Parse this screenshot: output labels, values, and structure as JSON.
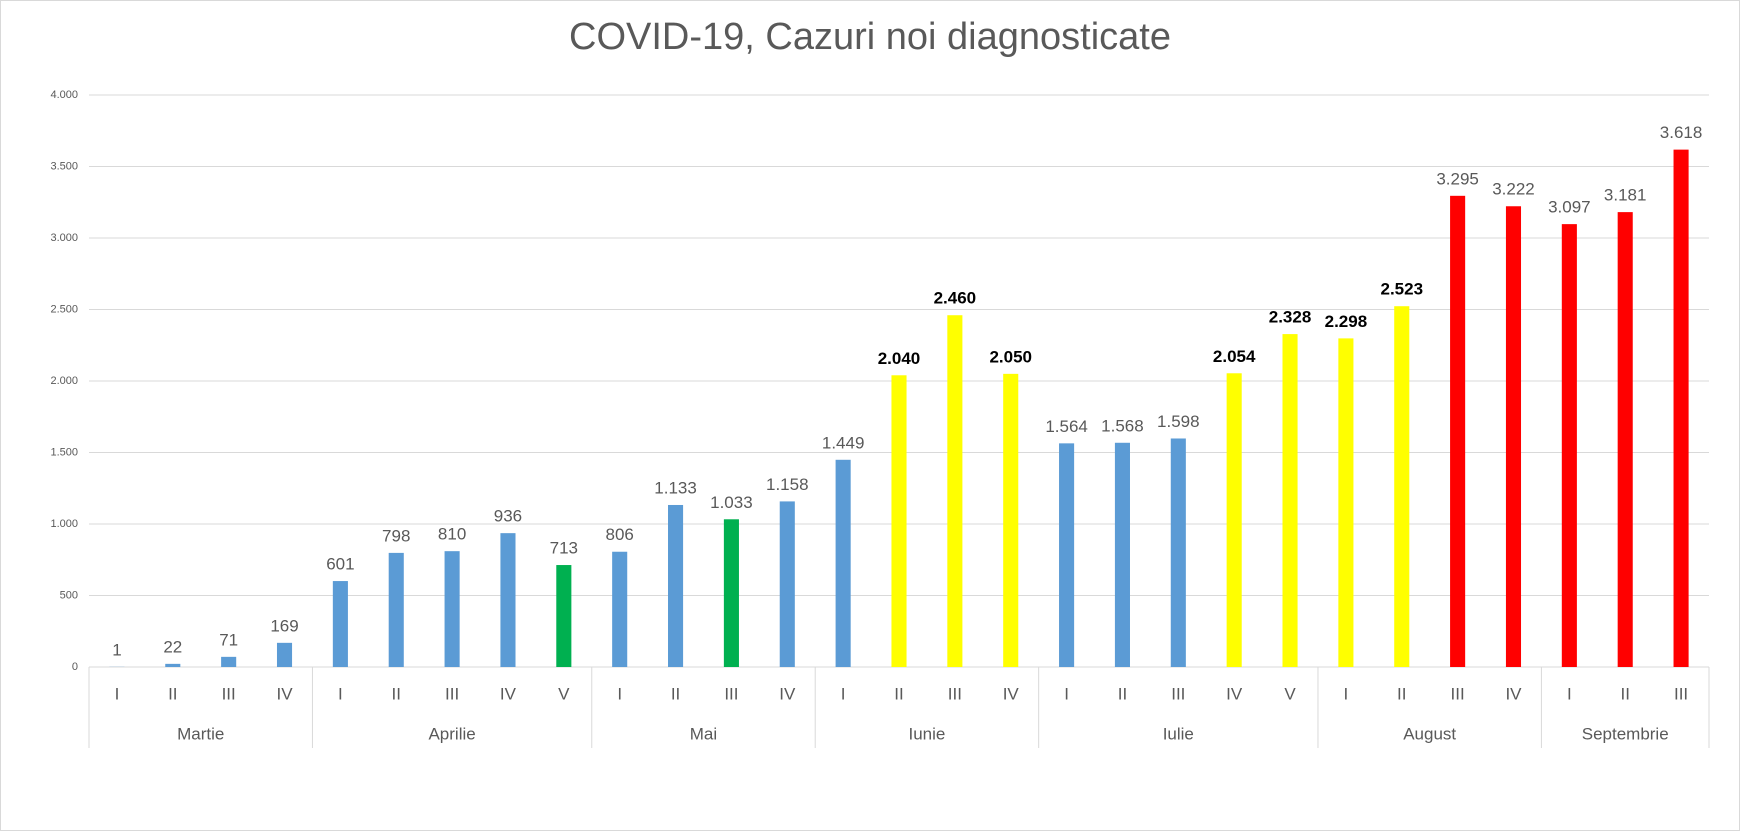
{
  "chart_data": {
    "type": "bar",
    "title": "COVID-19, Cazuri noi diagnosticate",
    "groups": [
      {
        "name": "Martie",
        "categories": [
          "I",
          "II",
          "III",
          "IV"
        ]
      },
      {
        "name": "Aprilie",
        "categories": [
          "I",
          "II",
          "III",
          "IV",
          "V"
        ]
      },
      {
        "name": "Mai",
        "categories": [
          "I",
          "II",
          "III",
          "IV"
        ]
      },
      {
        "name": "Iunie",
        "categories": [
          "I",
          "II",
          "III",
          "IV"
        ]
      },
      {
        "name": "Iulie",
        "categories": [
          "I",
          "II",
          "III",
          "IV",
          "V"
        ]
      },
      {
        "name": "August",
        "categories": [
          "I",
          "II",
          "III",
          "IV"
        ]
      },
      {
        "name": "Septembrie",
        "categories": [
          "I",
          "II",
          "III"
        ]
      }
    ],
    "values": [
      1,
      22,
      71,
      169,
      601,
      798,
      810,
      936,
      713,
      806,
      1133,
      1033,
      1158,
      1449,
      2040,
      2460,
      2050,
      1564,
      1568,
      1598,
      2054,
      2328,
      2298,
      2523,
      3295,
      3222,
      3097,
      3181,
      3618
    ],
    "value_labels": [
      "1",
      "22",
      "71",
      "169",
      "601",
      "798",
      "810",
      "936",
      "713",
      "806",
      "1.133",
      "1.033",
      "1.158",
      "1.449",
      "2.040",
      "2.460",
      "2.050",
      "1.564",
      "1.568",
      "1.598",
      "2.054",
      "2.328",
      "2.298",
      "2.523",
      "3.295",
      "3.222",
      "3.097",
      "3.181",
      "3.618"
    ],
    "colors": [
      "#5b9bd5",
      "#5b9bd5",
      "#5b9bd5",
      "#5b9bd5",
      "#5b9bd5",
      "#5b9bd5",
      "#5b9bd5",
      "#5b9bd5",
      "#00b050",
      "#5b9bd5",
      "#5b9bd5",
      "#00b050",
      "#5b9bd5",
      "#5b9bd5",
      "#ffff00",
      "#ffff00",
      "#ffff00",
      "#5b9bd5",
      "#5b9bd5",
      "#5b9bd5",
      "#ffff00",
      "#ffff00",
      "#ffff00",
      "#ffff00",
      "#ff0000",
      "#ff0000",
      "#ff0000",
      "#ff0000",
      "#ff0000"
    ],
    "label_bold": [
      false,
      false,
      false,
      false,
      false,
      false,
      false,
      false,
      false,
      false,
      false,
      false,
      false,
      false,
      true,
      true,
      true,
      false,
      false,
      false,
      true,
      true,
      true,
      true,
      false,
      false,
      false,
      false,
      false
    ],
    "ylim": [
      0,
      4000
    ],
    "yticks": [
      0,
      500,
      {
        "value": 1000,
        "label": "1.000"
      },
      {
        "value": 1500,
        "label": "1.500"
      },
      {
        "value": 2000,
        "label": "2.000"
      },
      {
        "value": 2500,
        "label": "2.500"
      },
      {
        "value": 3000,
        "label": "3.000"
      },
      {
        "value": 3500,
        "label": "3.500"
      },
      {
        "value": 4000,
        "label": "4.000"
      }
    ],
    "grid": true
  }
}
